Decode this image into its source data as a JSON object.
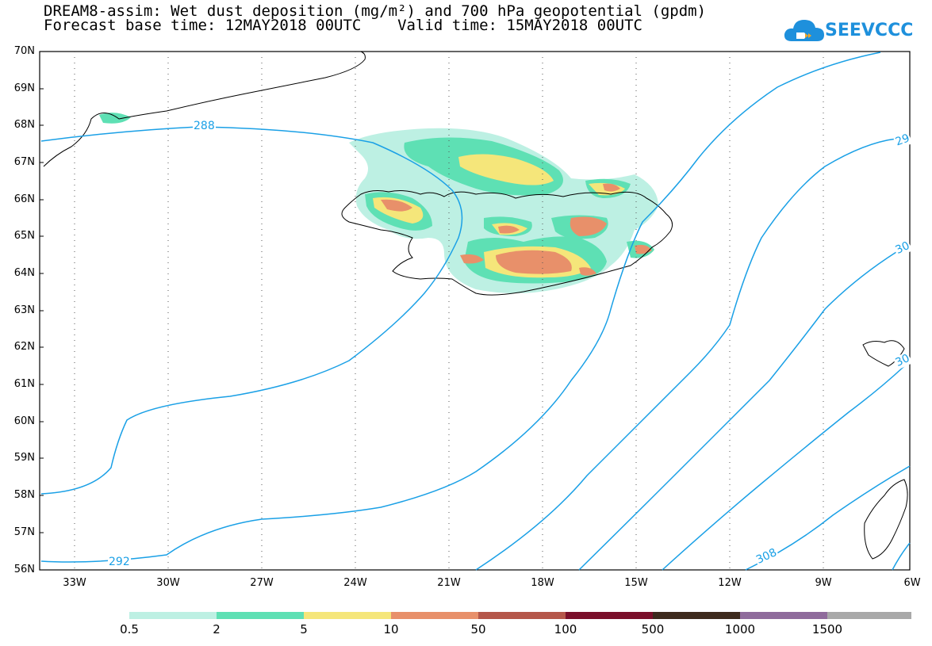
{
  "header": {
    "title_line_1": "DREAM8-assim: Wet dust deposition (mg/m²) and 700 hPa geopotential (gpdm)",
    "title_line_2": "Forecast base time: 12MAY2018 00UTC    Valid time: 15MAY2018 00UTC"
  },
  "logo": {
    "text": "SEEVCCC",
    "icon": "cloud-icon",
    "color": "#1e90dc"
  },
  "map": {
    "lat_labels": [
      "70N",
      "69N",
      "68N",
      "67N",
      "66N",
      "65N",
      "64N",
      "63N",
      "62N",
      "61N",
      "60N",
      "59N",
      "58N",
      "57N",
      "56N"
    ],
    "lon_labels": [
      "33W",
      "30W",
      "27W",
      "24W",
      "21W",
      "18W",
      "15W",
      "12W",
      "9W",
      "6W"
    ],
    "contour_color": "#1aa0e6",
    "contour_labels": [
      "288",
      "292",
      "308",
      "29",
      "30",
      "30"
    ]
  },
  "colorbar": {
    "labels": [
      "0.5",
      "2",
      "5",
      "10",
      "50",
      "100",
      "500",
      "1000",
      "1500"
    ],
    "colors": [
      "#bdf0e3",
      "#5ee0b4",
      "#f5e67a",
      "#e8906a",
      "#b5574a",
      "#7a0f2a",
      "#3d2a1d",
      "#8f6b9c",
      "#a9a9a9"
    ]
  }
}
